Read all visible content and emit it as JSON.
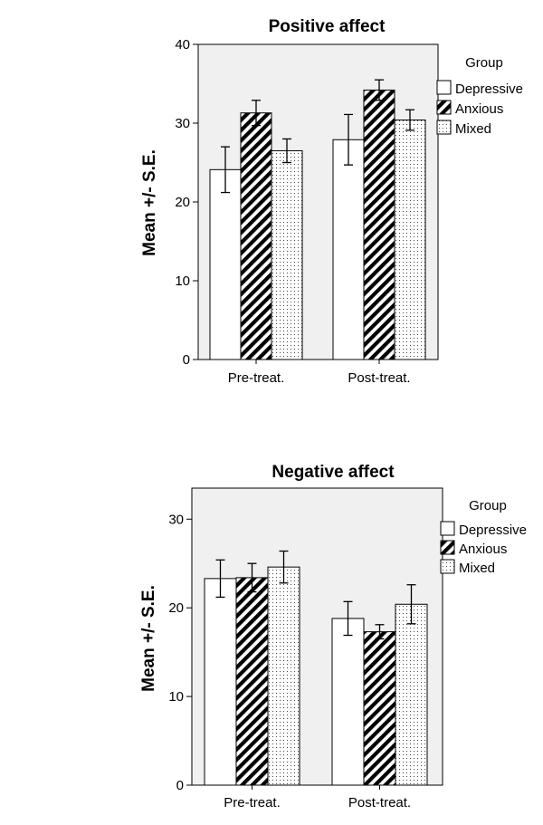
{
  "colors": {
    "plot_background": "#f0f0f0",
    "bar_outline": "#000000",
    "bar_fill_depressive": "#ffffff",
    "hatch": "#000000"
  },
  "legend": {
    "title": "Group",
    "items": [
      {
        "label": "Depressive",
        "pattern": "none"
      },
      {
        "label": "Anxious",
        "pattern": "diagonal-hatch"
      },
      {
        "label": "Mixed",
        "pattern": "dots"
      }
    ]
  },
  "chart_data": [
    {
      "type": "bar",
      "title": "Positive affect",
      "ylabel": "Mean +/- S.E.",
      "xlabel": "",
      "categories": [
        "Pre-treat.",
        "Post-treat."
      ],
      "ylim": [
        0,
        40
      ],
      "yticks": [
        0,
        10,
        20,
        30,
        40
      ],
      "grid": false,
      "legend_position": "right",
      "series": [
        {
          "name": "Depressive",
          "values": [
            24.1,
            27.9
          ],
          "error": [
            2.9,
            3.2
          ]
        },
        {
          "name": "Anxious",
          "values": [
            31.3,
            34.2
          ],
          "error": [
            1.6,
            1.3
          ]
        },
        {
          "name": "Mixed",
          "values": [
            26.5,
            30.4
          ],
          "error": [
            1.5,
            1.3
          ]
        }
      ]
    },
    {
      "type": "bar",
      "title": "Negative affect",
      "ylabel": "Mean +/- S.E.",
      "xlabel": "",
      "categories": [
        "Pre-treat.",
        "Post-treat."
      ],
      "ylim": [
        0,
        33.5
      ],
      "yticks": [
        0,
        10,
        20,
        30
      ],
      "grid": false,
      "legend_position": "right",
      "series": [
        {
          "name": "Depressive",
          "values": [
            23.3,
            18.8
          ],
          "error": [
            2.1,
            1.9
          ]
        },
        {
          "name": "Anxious",
          "values": [
            23.4,
            17.3
          ],
          "error": [
            1.6,
            0.8
          ]
        },
        {
          "name": "Mixed",
          "values": [
            24.6,
            20.4
          ],
          "error": [
            1.8,
            2.2
          ]
        }
      ]
    }
  ]
}
